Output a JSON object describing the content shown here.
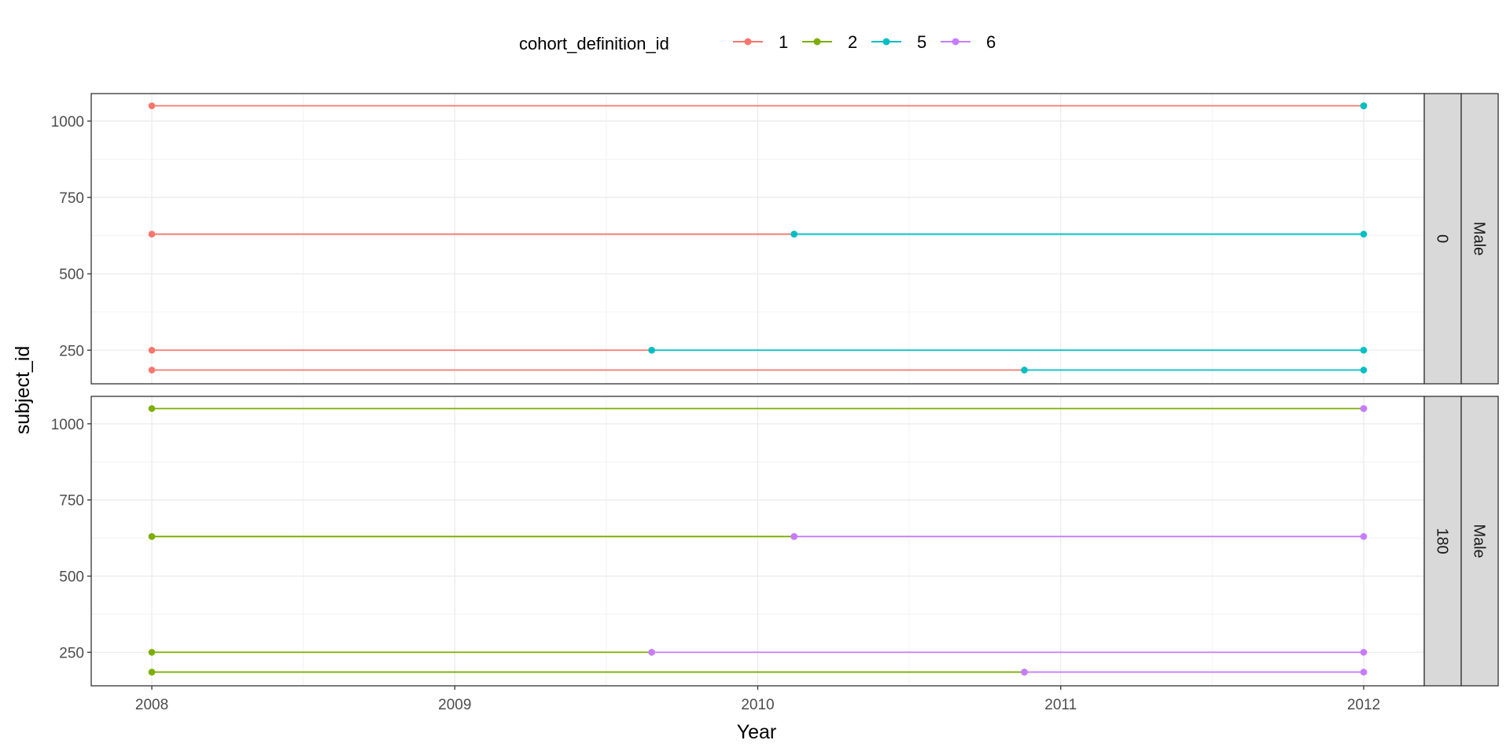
{
  "chart_data": {
    "type": "line",
    "xlabel": "Year",
    "ylabel": "subject_id",
    "x_ticks": [
      "2008",
      "2009",
      "2010",
      "2011",
      "2012"
    ],
    "x_tick_values": [
      2008,
      2009,
      2010,
      2011,
      2012
    ],
    "xlim": [
      2007.8,
      2012.2
    ],
    "y_ticks": [
      "250",
      "500",
      "750",
      "1000"
    ],
    "y_tick_values": [
      250,
      500,
      750,
      1000
    ],
    "ylim": [
      140,
      1090
    ],
    "grid": true,
    "legend": {
      "title": "cohort_definition_id",
      "position": "top",
      "entries": [
        "1",
        "2",
        "5",
        "6"
      ]
    },
    "colors": {
      "1": "#F8766D",
      "2": "#7CAE00",
      "5": "#00BFC4",
      "6": "#C77CFF"
    },
    "panels": [
      {
        "strips": [
          "0",
          "Male"
        ],
        "segments": [
          {
            "series": "1",
            "subject_id": 1050,
            "x": [
              2008.0,
              2012.0
            ]
          },
          {
            "series": "5",
            "subject_id": 1050,
            "x": [
              2012.0,
              2012.0
            ]
          },
          {
            "series": "1",
            "subject_id": 630,
            "x": [
              2008.0,
              2010.12
            ]
          },
          {
            "series": "5",
            "subject_id": 630,
            "x": [
              2010.12,
              2012.0
            ]
          },
          {
            "series": "1",
            "subject_id": 250,
            "x": [
              2008.0,
              2009.65
            ]
          },
          {
            "series": "5",
            "subject_id": 250,
            "x": [
              2009.65,
              2012.0
            ]
          },
          {
            "series": "1",
            "subject_id": 185,
            "x": [
              2008.0,
              2010.88
            ]
          },
          {
            "series": "5",
            "subject_id": 185,
            "x": [
              2010.88,
              2012.0
            ]
          }
        ]
      },
      {
        "strips": [
          "180",
          "Male"
        ],
        "segments": [
          {
            "series": "2",
            "subject_id": 1050,
            "x": [
              2008.0,
              2012.0
            ]
          },
          {
            "series": "6",
            "subject_id": 1050,
            "x": [
              2012.0,
              2012.0
            ]
          },
          {
            "series": "2",
            "subject_id": 630,
            "x": [
              2008.0,
              2010.12
            ]
          },
          {
            "series": "6",
            "subject_id": 630,
            "x": [
              2010.12,
              2012.0
            ]
          },
          {
            "series": "2",
            "subject_id": 250,
            "x": [
              2008.0,
              2009.65
            ]
          },
          {
            "series": "6",
            "subject_id": 250,
            "x": [
              2009.65,
              2012.0
            ]
          },
          {
            "series": "2",
            "subject_id": 185,
            "x": [
              2008.0,
              2010.88
            ]
          },
          {
            "series": "6",
            "subject_id": 185,
            "x": [
              2010.88,
              2012.0
            ]
          }
        ]
      }
    ]
  }
}
